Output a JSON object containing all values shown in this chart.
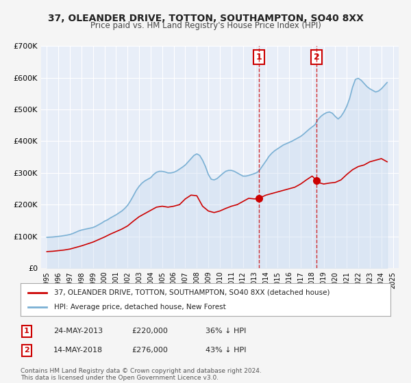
{
  "title": "37, OLEANDER DRIVE, TOTTON, SOUTHAMPTON, SO40 8XX",
  "subtitle": "Price paid vs. HM Land Registry's House Price Index (HPI)",
  "bg_color": "#f0f4ff",
  "plot_bg_color": "#e8eef8",
  "grid_color": "#ffffff",
  "red_line_color": "#cc0000",
  "blue_line_color": "#7ab0d4",
  "blue_fill_color": "#c5d9ee",
  "ylim": [
    0,
    700000
  ],
  "yticks": [
    0,
    100000,
    200000,
    300000,
    400000,
    500000,
    600000,
    700000
  ],
  "ytick_labels": [
    "£0",
    "£100K",
    "£200K",
    "£300K",
    "£400K",
    "£500K",
    "£600K",
    "£700K"
  ],
  "xlim_start": 1994.5,
  "xlim_end": 2025.5,
  "xticks": [
    1995,
    1996,
    1997,
    1998,
    1999,
    2000,
    2001,
    2002,
    2003,
    2004,
    2005,
    2006,
    2007,
    2008,
    2009,
    2010,
    2011,
    2012,
    2013,
    2014,
    2015,
    2016,
    2017,
    2018,
    2019,
    2020,
    2021,
    2022,
    2023,
    2024,
    2025
  ],
  "sale1_x": 2013.39,
  "sale1_y": 220000,
  "sale1_label": "1",
  "sale1_date": "24-MAY-2013",
  "sale1_price": "£220,000",
  "sale1_hpi": "36% ↓ HPI",
  "sale2_x": 2018.37,
  "sale2_y": 276000,
  "sale2_label": "2",
  "sale2_date": "14-MAY-2018",
  "sale2_price": "£276,000",
  "sale2_hpi": "43% ↓ HPI",
  "legend_red_label": "37, OLEANDER DRIVE, TOTTON, SOUTHAMPTON, SO40 8XX (detached house)",
  "legend_blue_label": "HPI: Average price, detached house, New Forest",
  "footnote": "Contains HM Land Registry data © Crown copyright and database right 2024.\nThis data is licensed under the Open Government Licence v3.0.",
  "hpi_data": {
    "years": [
      1995.0,
      1995.25,
      1995.5,
      1995.75,
      1996.0,
      1996.25,
      1996.5,
      1996.75,
      1997.0,
      1997.25,
      1997.5,
      1997.75,
      1998.0,
      1998.25,
      1998.5,
      1998.75,
      1999.0,
      1999.25,
      1999.5,
      1999.75,
      2000.0,
      2000.25,
      2000.5,
      2000.75,
      2001.0,
      2001.25,
      2001.5,
      2001.75,
      2002.0,
      2002.25,
      2002.5,
      2002.75,
      2003.0,
      2003.25,
      2003.5,
      2003.75,
      2004.0,
      2004.25,
      2004.5,
      2004.75,
      2005.0,
      2005.25,
      2005.5,
      2005.75,
      2006.0,
      2006.25,
      2006.5,
      2006.75,
      2007.0,
      2007.25,
      2007.5,
      2007.75,
      2008.0,
      2008.25,
      2008.5,
      2008.75,
      2009.0,
      2009.25,
      2009.5,
      2009.75,
      2010.0,
      2010.25,
      2010.5,
      2010.75,
      2011.0,
      2011.25,
      2011.5,
      2011.75,
      2012.0,
      2012.25,
      2012.5,
      2012.75,
      2013.0,
      2013.25,
      2013.5,
      2013.75,
      2014.0,
      2014.25,
      2014.5,
      2014.75,
      2015.0,
      2015.25,
      2015.5,
      2015.75,
      2016.0,
      2016.25,
      2016.5,
      2016.75,
      2017.0,
      2017.25,
      2017.5,
      2017.75,
      2018.0,
      2018.25,
      2018.5,
      2018.75,
      2019.0,
      2019.25,
      2019.5,
      2019.75,
      2020.0,
      2020.25,
      2020.5,
      2020.75,
      2021.0,
      2021.25,
      2021.5,
      2021.75,
      2022.0,
      2022.25,
      2022.5,
      2022.75,
      2023.0,
      2023.25,
      2023.5,
      2023.75,
      2024.0,
      2024.25,
      2024.5
    ],
    "values": [
      97000,
      97500,
      98000,
      99000,
      100000,
      101000,
      102500,
      104000,
      106000,
      109000,
      113000,
      117000,
      120000,
      122000,
      124000,
      126000,
      128000,
      132000,
      137000,
      142000,
      148000,
      152000,
      158000,
      163000,
      168000,
      174000,
      180000,
      188000,
      198000,
      212000,
      228000,
      245000,
      258000,
      268000,
      275000,
      280000,
      285000,
      295000,
      302000,
      305000,
      305000,
      303000,
      300000,
      300000,
      302000,
      306000,
      312000,
      318000,
      325000,
      335000,
      345000,
      355000,
      360000,
      355000,
      340000,
      320000,
      295000,
      280000,
      278000,
      282000,
      290000,
      298000,
      305000,
      308000,
      308000,
      305000,
      300000,
      295000,
      290000,
      290000,
      292000,
      295000,
      298000,
      302000,
      312000,
      325000,
      338000,
      352000,
      362000,
      370000,
      376000,
      382000,
      388000,
      392000,
      396000,
      400000,
      405000,
      410000,
      415000,
      422000,
      430000,
      438000,
      445000,
      452000,
      468000,
      478000,
      485000,
      490000,
      492000,
      488000,
      478000,
      470000,
      478000,
      492000,
      510000,
      535000,
      570000,
      595000,
      598000,
      592000,
      582000,
      572000,
      565000,
      560000,
      555000,
      558000,
      565000,
      575000,
      585000
    ]
  },
  "red_data": {
    "years": [
      1995.0,
      1995.5,
      1996.0,
      1996.5,
      1997.0,
      1997.5,
      1998.0,
      1998.5,
      1999.0,
      1999.5,
      2000.0,
      2000.5,
      2001.0,
      2001.5,
      2002.0,
      2002.5,
      2003.0,
      2003.5,
      2004.0,
      2004.5,
      2005.0,
      2005.5,
      2006.0,
      2006.5,
      2007.0,
      2007.5,
      2008.0,
      2008.5,
      2009.0,
      2009.5,
      2010.0,
      2010.5,
      2011.0,
      2011.5,
      2012.0,
      2012.5,
      2013.0,
      2013.39,
      2013.5,
      2014.0,
      2014.5,
      2015.0,
      2015.5,
      2016.0,
      2016.5,
      2017.0,
      2017.5,
      2018.0,
      2018.37,
      2018.5,
      2019.0,
      2019.5,
      2020.0,
      2020.5,
      2021.0,
      2021.5,
      2022.0,
      2022.5,
      2023.0,
      2023.5,
      2024.0,
      2024.5
    ],
    "values": [
      52000,
      53000,
      55000,
      57000,
      60000,
      65000,
      70000,
      76000,
      82000,
      90000,
      98000,
      107000,
      115000,
      123000,
      133000,
      148000,
      162000,
      172000,
      182000,
      192000,
      195000,
      192000,
      195000,
      200000,
      218000,
      230000,
      228000,
      195000,
      180000,
      175000,
      180000,
      188000,
      195000,
      200000,
      210000,
      220000,
      218000,
      220000,
      222000,
      230000,
      235000,
      240000,
      245000,
      250000,
      255000,
      265000,
      278000,
      290000,
      276000,
      270000,
      265000,
      268000,
      270000,
      278000,
      295000,
      310000,
      320000,
      325000,
      335000,
      340000,
      345000,
      335000
    ]
  }
}
